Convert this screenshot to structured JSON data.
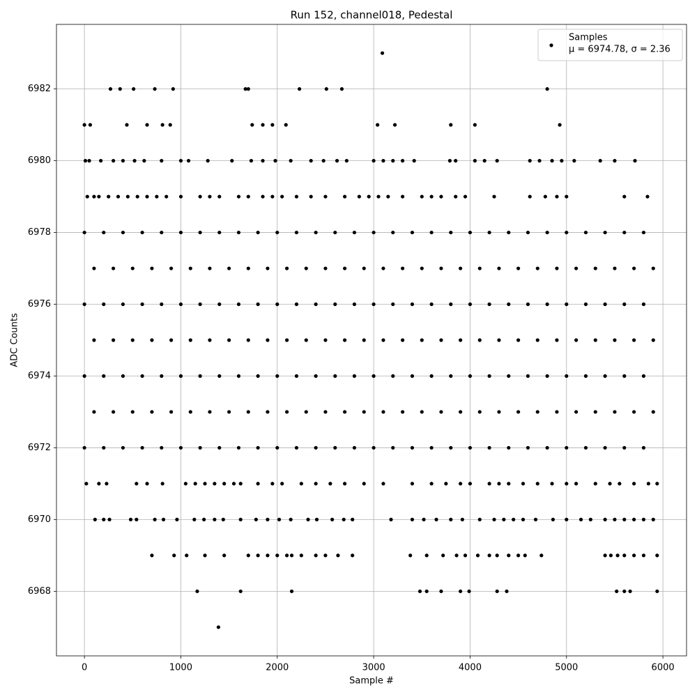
{
  "chart_data": {
    "type": "scatter",
    "title": "Run 152, channel018, Pedestal",
    "x_label": "Sample #",
    "y_label": "ADC Counts",
    "xlim": [
      -290,
      6245
    ],
    "ylim": [
      6966.2,
      6983.8
    ],
    "xticks": [
      0,
      1000,
      2000,
      3000,
      4000,
      5000,
      6000
    ],
    "yticks": [
      6968,
      6970,
      6972,
      6974,
      6976,
      6978,
      6980,
      6982
    ],
    "grid": true,
    "legend": "upper right",
    "series": [
      {
        "name": "Samples",
        "stats": "μ = 6974.78, σ = 2.36",
        "color": "#000000",
        "x": [
          3090,
          270,
          370,
          510,
          730,
          920,
          1670,
          1700,
          2230,
          2510,
          2670,
          4800,
          0,
          60,
          440,
          650,
          810,
          890,
          1740,
          1850,
          1950,
          2090,
          3040,
          3220,
          3800,
          4050,
          4930,
          10,
          50,
          170,
          300,
          400,
          520,
          620,
          800,
          1000,
          1080,
          1280,
          1530,
          1730,
          1850,
          1980,
          2140,
          2350,
          2480,
          2620,
          2720,
          3000,
          3100,
          3200,
          3300,
          3420,
          3790,
          3850,
          4050,
          4150,
          4280,
          4620,
          4720,
          4850,
          4950,
          5080,
          5350,
          5500,
          5710,
          30,
          100,
          150,
          250,
          350,
          450,
          550,
          650,
          750,
          850,
          1000,
          1200,
          1300,
          1400,
          1600,
          1700,
          1850,
          1950,
          2050,
          2200,
          2350,
          2500,
          2700,
          2850,
          2950,
          3050,
          3150,
          3300,
          3500,
          3600,
          3700,
          3850,
          3950,
          4250,
          4620,
          4780,
          4900,
          5000,
          5600,
          5840,
          0,
          200,
          400,
          600,
          800,
          1000,
          1200,
          1400,
          1600,
          1800,
          2000,
          2200,
          2400,
          2600,
          2800,
          3000,
          3200,
          3400,
          3600,
          3800,
          4000,
          4200,
          4400,
          4600,
          4800,
          5000,
          5200,
          5400,
          5600,
          5800,
          100,
          300,
          500,
          700,
          900,
          1100,
          1300,
          1500,
          1700,
          1900,
          2100,
          2300,
          2500,
          2700,
          2900,
          3100,
          3300,
          3500,
          3700,
          3900,
          4100,
          4300,
          4500,
          4700,
          4900,
          5100,
          5300,
          5500,
          5700,
          5900,
          0,
          200,
          400,
          600,
          800,
          1000,
          1200,
          1400,
          1600,
          1800,
          2000,
          2200,
          2400,
          2600,
          2800,
          3000,
          3200,
          3400,
          3600,
          3800,
          4000,
          4200,
          4400,
          4600,
          4800,
          5000,
          5200,
          5400,
          5600,
          5800,
          100,
          300,
          500,
          700,
          900,
          1100,
          1300,
          1500,
          1700,
          1900,
          2100,
          2300,
          2500,
          2700,
          2900,
          3100,
          3300,
          3500,
          3700,
          3900,
          4100,
          4300,
          4500,
          4700,
          4900,
          5100,
          5300,
          5500,
          5700,
          5900,
          0,
          200,
          400,
          600,
          800,
          1000,
          1200,
          1400,
          1600,
          1800,
          2000,
          2200,
          2400,
          2600,
          2800,
          3000,
          3200,
          3400,
          3600,
          3800,
          4000,
          4200,
          4400,
          4600,
          4800,
          5000,
          5200,
          5400,
          5600,
          5800,
          100,
          300,
          500,
          700,
          900,
          1100,
          1300,
          1500,
          1700,
          1900,
          2100,
          2300,
          2500,
          2700,
          2900,
          3100,
          3300,
          3500,
          3700,
          3900,
          4100,
          4300,
          4500,
          4700,
          4900,
          5100,
          5300,
          5500,
          5700,
          5900,
          0,
          200,
          400,
          600,
          800,
          1000,
          1200,
          1400,
          1600,
          1800,
          2000,
          2200,
          2400,
          2600,
          2800,
          3000,
          3200,
          3400,
          3600,
          3800,
          4000,
          4200,
          4400,
          4600,
          4800,
          5000,
          5200,
          5400,
          5600,
          5800,
          20,
          150,
          230,
          540,
          650,
          810,
          1050,
          1150,
          1250,
          1350,
          1450,
          1550,
          1620,
          1800,
          1950,
          2050,
          2250,
          2400,
          2550,
          2700,
          2900,
          3100,
          3400,
          3600,
          3750,
          3900,
          4000,
          4200,
          4300,
          4400,
          4550,
          4700,
          4850,
          5000,
          5100,
          5300,
          5450,
          5550,
          5700,
          5850,
          5940,
          110,
          200,
          260,
          480,
          540,
          730,
          820,
          960,
          1140,
          1240,
          1350,
          1440,
          1620,
          1780,
          1900,
          2020,
          2140,
          2320,
          2410,
          2570,
          2690,
          2780,
          3180,
          3400,
          3520,
          3650,
          3800,
          3920,
          4100,
          4250,
          4350,
          4450,
          4550,
          4680,
          4860,
          5000,
          5150,
          5250,
          5400,
          5500,
          5600,
          5700,
          5800,
          5900,
          700,
          930,
          1060,
          1250,
          1450,
          1700,
          1800,
          1900,
          2000,
          2100,
          2150,
          2250,
          2400,
          2500,
          2630,
          2780,
          3380,
          3550,
          3720,
          3860,
          3950,
          4080,
          4200,
          4280,
          4400,
          4500,
          4570,
          4740,
          5400,
          5460,
          5530,
          5600,
          5700,
          5800,
          5940,
          1170,
          1620,
          2150,
          3480,
          3550,
          3700,
          3900,
          3990,
          4280,
          4380,
          5520,
          5600,
          5660,
          5940,
          1390
        ],
        "values": [
          6983,
          6982,
          6982,
          6982,
          6982,
          6982,
          6982,
          6982,
          6982,
          6982,
          6982,
          6982,
          6981,
          6981,
          6981,
          6981,
          6981,
          6981,
          6981,
          6981,
          6981,
          6981,
          6981,
          6981,
          6981,
          6981,
          6981,
          6980,
          6980,
          6980,
          6980,
          6980,
          6980,
          6980,
          6980,
          6980,
          6980,
          6980,
          6980,
          6980,
          6980,
          6980,
          6980,
          6980,
          6980,
          6980,
          6980,
          6980,
          6980,
          6980,
          6980,
          6980,
          6980,
          6980,
          6980,
          6980,
          6980,
          6980,
          6980,
          6980,
          6980,
          6980,
          6980,
          6980,
          6980,
          6979,
          6979,
          6979,
          6979,
          6979,
          6979,
          6979,
          6979,
          6979,
          6979,
          6979,
          6979,
          6979,
          6979,
          6979,
          6979,
          6979,
          6979,
          6979,
          6979,
          6979,
          6979,
          6979,
          6979,
          6979,
          6979,
          6979,
          6979,
          6979,
          6979,
          6979,
          6979,
          6979,
          6979,
          6979,
          6979,
          6979,
          6979,
          6979,
          6979,
          6978,
          6978,
          6978,
          6978,
          6978,
          6978,
          6978,
          6978,
          6978,
          6978,
          6978,
          6978,
          6978,
          6978,
          6978,
          6978,
          6978,
          6978,
          6978,
          6978,
          6978,
          6978,
          6978,
          6978,
          6978,
          6978,
          6978,
          6978,
          6978,
          6978,
          6977,
          6977,
          6977,
          6977,
          6977,
          6977,
          6977,
          6977,
          6977,
          6977,
          6977,
          6977,
          6977,
          6977,
          6977,
          6977,
          6977,
          6977,
          6977,
          6977,
          6977,
          6977,
          6977,
          6977,
          6977,
          6977,
          6977,
          6977,
          6977,
          6977,
          6976,
          6976,
          6976,
          6976,
          6976,
          6976,
          6976,
          6976,
          6976,
          6976,
          6976,
          6976,
          6976,
          6976,
          6976,
          6976,
          6976,
          6976,
          6976,
          6976,
          6976,
          6976,
          6976,
          6976,
          6976,
          6976,
          6976,
          6976,
          6976,
          6976,
          6975,
          6975,
          6975,
          6975,
          6975,
          6975,
          6975,
          6975,
          6975,
          6975,
          6975,
          6975,
          6975,
          6975,
          6975,
          6975,
          6975,
          6975,
          6975,
          6975,
          6975,
          6975,
          6975,
          6975,
          6975,
          6975,
          6975,
          6975,
          6975,
          6975,
          6974,
          6974,
          6974,
          6974,
          6974,
          6974,
          6974,
          6974,
          6974,
          6974,
          6974,
          6974,
          6974,
          6974,
          6974,
          6974,
          6974,
          6974,
          6974,
          6974,
          6974,
          6974,
          6974,
          6974,
          6974,
          6974,
          6974,
          6974,
          6974,
          6974,
          6973,
          6973,
          6973,
          6973,
          6973,
          6973,
          6973,
          6973,
          6973,
          6973,
          6973,
          6973,
          6973,
          6973,
          6973,
          6973,
          6973,
          6973,
          6973,
          6973,
          6973,
          6973,
          6973,
          6973,
          6973,
          6973,
          6973,
          6973,
          6973,
          6973,
          6972,
          6972,
          6972,
          6972,
          6972,
          6972,
          6972,
          6972,
          6972,
          6972,
          6972,
          6972,
          6972,
          6972,
          6972,
          6972,
          6972,
          6972,
          6972,
          6972,
          6972,
          6972,
          6972,
          6972,
          6972,
          6972,
          6972,
          6972,
          6972,
          6972,
          6971,
          6971,
          6971,
          6971,
          6971,
          6971,
          6971,
          6971,
          6971,
          6971,
          6971,
          6971,
          6971,
          6971,
          6971,
          6971,
          6971,
          6971,
          6971,
          6971,
          6971,
          6971,
          6971,
          6971,
          6971,
          6971,
          6971,
          6971,
          6971,
          6971,
          6971,
          6971,
          6971,
          6971,
          6971,
          6971,
          6971,
          6971,
          6971,
          6971,
          6971,
          6970,
          6970,
          6970,
          6970,
          6970,
          6970,
          6970,
          6970,
          6970,
          6970,
          6970,
          6970,
          6970,
          6970,
          6970,
          6970,
          6970,
          6970,
          6970,
          6970,
          6970,
          6970,
          6970,
          6970,
          6970,
          6970,
          6970,
          6970,
          6970,
          6970,
          6970,
          6970,
          6970,
          6970,
          6970,
          6970,
          6970,
          6970,
          6970,
          6970,
          6970,
          6970,
          6970,
          6970,
          6969,
          6969,
          6969,
          6969,
          6969,
          6969,
          6969,
          6969,
          6969,
          6969,
          6969,
          6969,
          6969,
          6969,
          6969,
          6969,
          6969,
          6969,
          6969,
          6969,
          6969,
          6969,
          6969,
          6969,
          6969,
          6969,
          6969,
          6969,
          6969,
          6969,
          6969,
          6969,
          6969,
          6969,
          6969,
          6968,
          6968,
          6968,
          6968,
          6968,
          6968,
          6968,
          6968,
          6968,
          6968,
          6968,
          6968,
          6968,
          6968,
          6967
        ]
      }
    ]
  }
}
